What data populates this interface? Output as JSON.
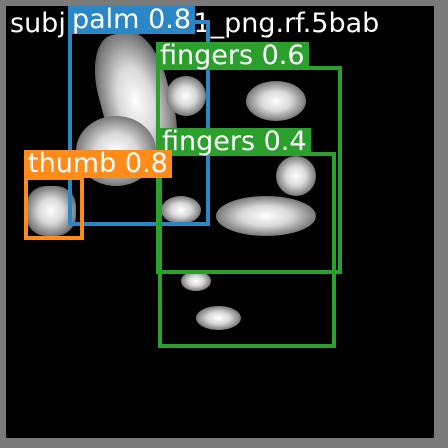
{
  "image": {
    "filename_overlay": "subjpalm0.831_png.rf.5bab",
    "colors": {
      "palm": "#2a86c5",
      "fingers": "#2ca02c",
      "thumb": "#ff8c1a",
      "background": "#000000",
      "border": "#7a7a7a"
    }
  },
  "detections": [
    {
      "label": "palm 0.8"
    },
    {
      "label": "fingers 0.6"
    },
    {
      "label": "fingers 0.4"
    },
    {
      "label": "thumb 0.8"
    },
    {
      "label": ""
    }
  ]
}
